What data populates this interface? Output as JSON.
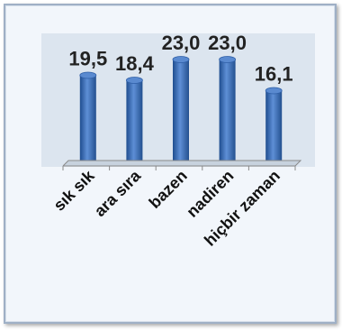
{
  "chart_data": {
    "type": "bar",
    "categories": [
      "sık sık",
      "ara sıra",
      "bazen",
      "nadiren",
      "hiçbir zaman"
    ],
    "values": [
      19.5,
      18.4,
      23.0,
      23.0,
      16.1
    ],
    "value_labels": [
      "19,5",
      "18,4",
      "23,0",
      "23,0",
      "16,1"
    ],
    "title": "",
    "xlabel": "",
    "ylabel": "",
    "ylim": [
      0,
      30
    ],
    "grid": false,
    "legend": "none",
    "bar_color": "#3b6fb5",
    "bar_highlight": "#6f9ee0",
    "bar_shadow": "#1f4d8f",
    "plot_background": "#dce5ef"
  }
}
